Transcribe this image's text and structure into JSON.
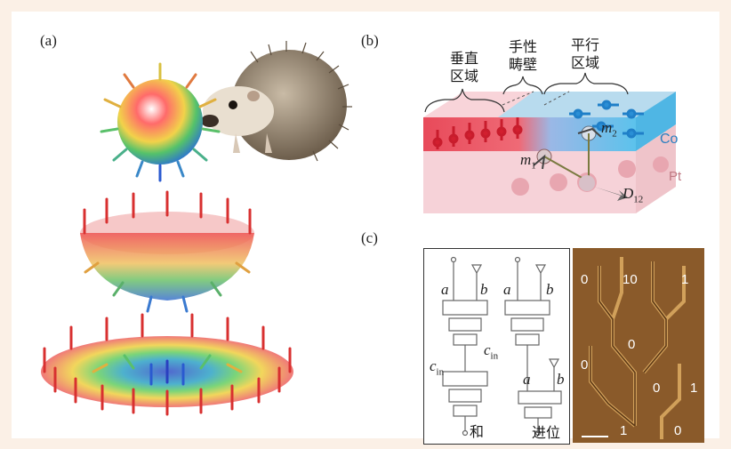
{
  "panels": {
    "a": "(a)",
    "b": "(b)",
    "c": "(c)"
  },
  "panel_b": {
    "region_perpendicular": [
      "垂直",
      "区域"
    ],
    "chiral_wall": [
      "手性",
      "畴壁"
    ],
    "region_parallel": [
      "平行",
      "区域"
    ],
    "co": "Co",
    "pt": "Pt",
    "m1": {
      "base": "m",
      "sub": "1"
    },
    "m2": {
      "base": "m",
      "sub": "2"
    },
    "d12": {
      "base": "D",
      "sub": "12"
    }
  },
  "panel_c": {
    "circuit": {
      "a1": "a",
      "b1": "b",
      "a2": "a",
      "b2": "b",
      "cin1": {
        "base": "c",
        "sub": "in"
      },
      "cin2": {
        "base": "c",
        "sub": "in"
      },
      "a3": "a",
      "b3": "b",
      "sum": "和",
      "carry": "进位"
    },
    "chip_numbers": [
      "0",
      "10",
      "1",
      "0",
      "0",
      "0",
      "1",
      "1",
      "0"
    ]
  },
  "colors": {
    "frame_bg": "#fbf0e6",
    "red": "#e03030",
    "blue": "#2a8fd6",
    "chip": "#8a5a2a"
  }
}
